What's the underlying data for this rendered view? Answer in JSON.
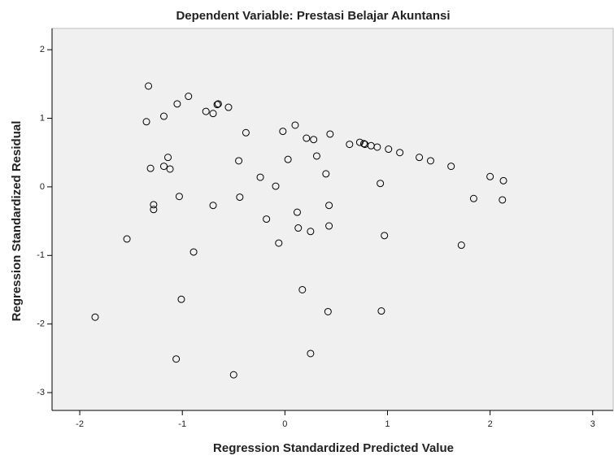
{
  "chart_data": {
    "type": "scatter",
    "title": "Dependent Variable: Prestasi Belajar Akuntansi",
    "xlabel": "Regression Standardized Predicted Value",
    "ylabel": "Regression Standardized Residual",
    "x": [
      -1.33,
      -1.35,
      -1.18,
      -1.05,
      -0.94,
      -0.77,
      -0.7,
      -0.66,
      -0.65,
      -0.55,
      -0.38,
      -0.02,
      0.1,
      0.21,
      0.28,
      0.44,
      0.31,
      0.63,
      0.73,
      0.77,
      0.78,
      0.84,
      0.9,
      1.01,
      1.12,
      1.31,
      1.42,
      1.62,
      2.0,
      2.13,
      -1.14,
      -1.31,
      -1.18,
      -1.12,
      -0.45,
      -0.24,
      0.03,
      0.4,
      -0.09,
      0.93,
      -1.03,
      -1.28,
      -1.28,
      -0.7,
      -0.44,
      0.43,
      1.84,
      2.12,
      -0.18,
      0.12,
      0.13,
      0.25,
      0.43,
      -0.06,
      -1.54,
      0.97,
      1.72,
      -0.89,
      0.17,
      -1.01,
      0.42,
      0.94,
      -1.85,
      -1.06,
      0.25,
      -0.5
    ],
    "values": [
      1.47,
      0.95,
      1.03,
      1.21,
      1.32,
      1.1,
      1.07,
      1.2,
      1.21,
      1.16,
      0.79,
      0.81,
      0.9,
      0.71,
      0.69,
      0.77,
      0.45,
      0.62,
      0.65,
      0.63,
      0.62,
      0.6,
      0.58,
      0.55,
      0.5,
      0.43,
      0.38,
      0.3,
      0.15,
      0.09,
      0.43,
      0.27,
      0.3,
      0.26,
      0.38,
      0.14,
      0.4,
      0.19,
      0.01,
      0.05,
      -0.14,
      -0.26,
      -0.33,
      -0.27,
      -0.15,
      -0.27,
      -0.17,
      -0.19,
      -0.47,
      -0.37,
      -0.6,
      -0.65,
      -0.57,
      -0.82,
      -0.76,
      -0.71,
      -0.85,
      -0.95,
      -1.5,
      -1.64,
      -1.82,
      -1.81,
      -1.9,
      -2.51,
      -2.43,
      -2.74
    ],
    "color": "#000000",
    "xlim": [
      -2.27,
      3.2
    ],
    "ylim": [
      -3.26,
      2.31
    ],
    "xticks": [
      -2,
      -1,
      0,
      1,
      2,
      3
    ],
    "yticks": [
      -3,
      -2,
      -1,
      0,
      1,
      2
    ]
  }
}
